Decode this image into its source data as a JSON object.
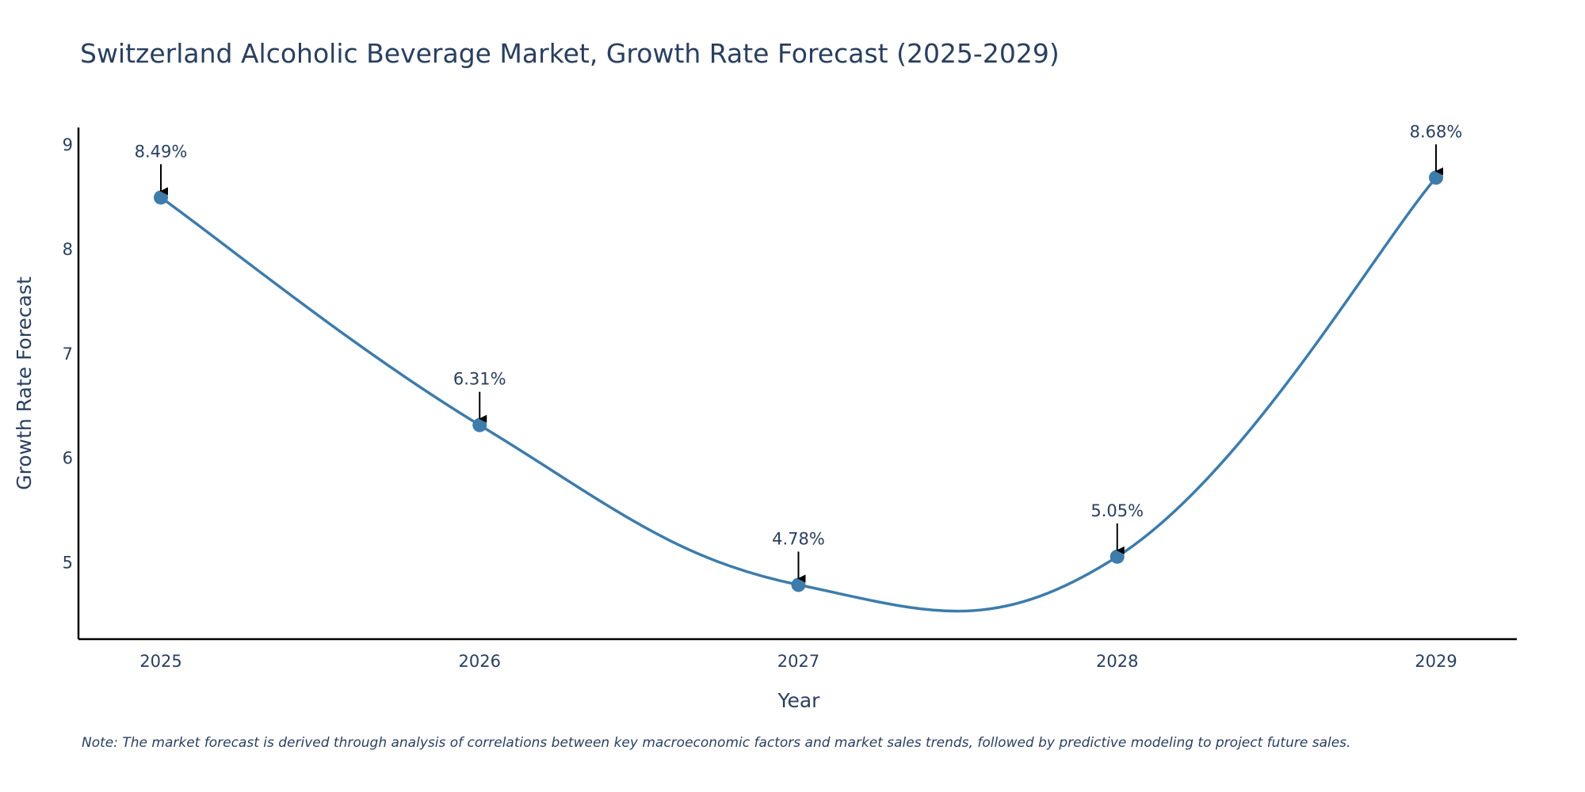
{
  "chart_data": {
    "type": "line",
    "title": "Switzerland Alcoholic Beverage Market, Growth Rate Forecast (2025-2029)",
    "xlabel": "Year",
    "ylabel": "Growth Rate Forecast",
    "categories": [
      "2025",
      "2026",
      "2027",
      "2028",
      "2029"
    ],
    "values": [
      8.49,
      6.31,
      4.78,
      5.05,
      8.68
    ],
    "data_labels": [
      "8.49%",
      "6.31%",
      "4.78%",
      "5.05%",
      "8.68%"
    ],
    "y_ticks": [
      "5",
      "6",
      "7",
      "8",
      "9"
    ],
    "ylim": [
      4.26,
      9.16
    ],
    "line_shape": "spline",
    "grid": false,
    "series_color": "#3d7cab",
    "marker_color": "#3d7cab",
    "arrow_color": "#000000",
    "axis_color": "#000000",
    "text_color": "#2a3f5f"
  },
  "note": "Note: The market forecast is derived through analysis of correlations between key macroeconomic factors and market sales trends, followed by predictive modeling to project future sales."
}
